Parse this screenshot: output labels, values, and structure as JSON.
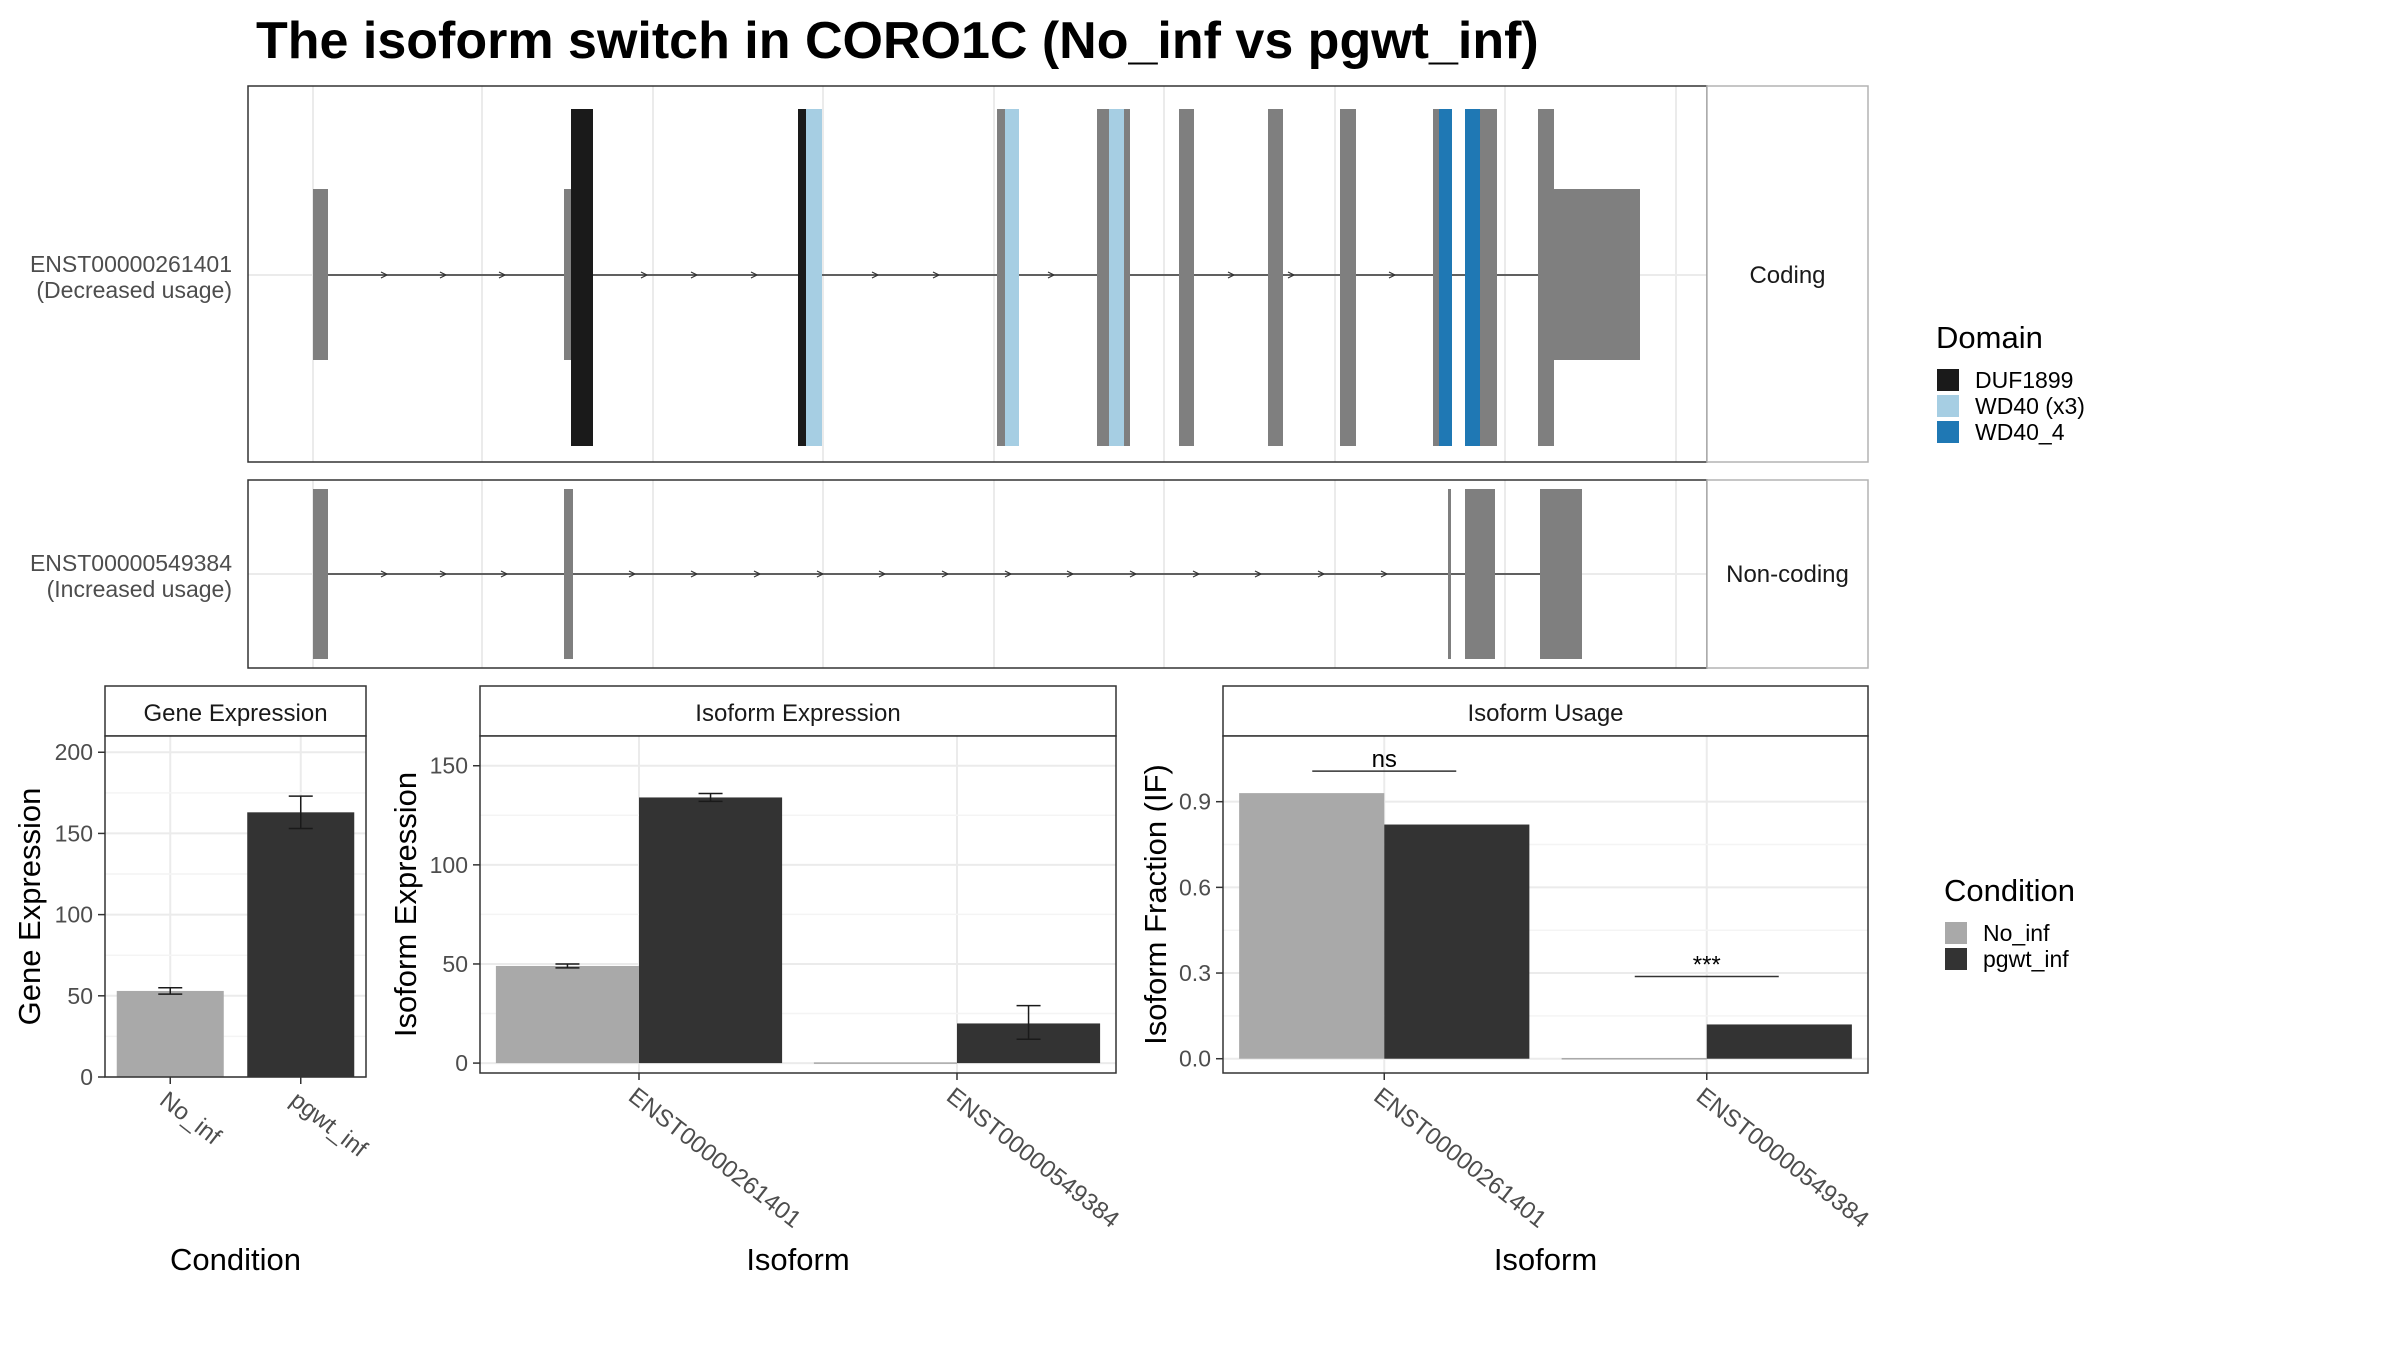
{
  "title": "The isoform switch in CORO1C (No_inf vs pgwt_inf)",
  "colors": {
    "exon_default": "#7f7f7f",
    "panel_border": "#333333",
    "strip_fill": "#ffffff",
    "grid": "#ebebeb",
    "domain": {
      "DUF1899": "#1a1a1a",
      "WD40 (x3)": "#a6cee3",
      "WD40_4": "#1f78b4"
    },
    "condition": {
      "No_inf": "#a9a9a9",
      "pgwt_inf": "#333333"
    }
  },
  "legends": {
    "domain": {
      "title": "Domain",
      "items": [
        "DUF1899",
        "WD40 (x3)",
        "WD40_4"
      ]
    },
    "condition": {
      "title": "Condition",
      "items": [
        "No_inf",
        "pgwt_inf"
      ]
    }
  },
  "tracks": [
    {
      "id": "ENST00000261401",
      "line1": "ENST00000261401",
      "line2": "(Decreased usage)",
      "type": "Coding"
    },
    {
      "id": "ENST00000549384",
      "line1": "ENST00000549384",
      "line2": "(Increased usage)",
      "type": "Non-coding"
    }
  ],
  "chart_data": [
    {
      "type": "bar",
      "title": "Gene Expression",
      "xlabel": "Condition",
      "ylabel": "Gene Expression",
      "categories": [
        "No_inf",
        "pgwt_inf"
      ],
      "values": [
        53,
        163
      ],
      "errors": [
        [
          51,
          55
        ],
        [
          153,
          173
        ]
      ],
      "ylim": [
        0,
        210
      ],
      "yticks": [
        0,
        50,
        100,
        150,
        200
      ],
      "grid": true
    },
    {
      "type": "bar",
      "title": "Isoform Expression",
      "xlabel": "Isoform",
      "ylabel": "Isoform Expression",
      "categories": [
        "ENST00000261401",
        "ENST00000549384"
      ],
      "series": [
        {
          "name": "No_inf",
          "values": [
            49,
            0
          ],
          "errors": [
            [
              48,
              50
            ],
            [
              0,
              0
            ]
          ]
        },
        {
          "name": "pgwt_inf",
          "values": [
            134,
            20
          ],
          "errors": [
            [
              132,
              136
            ],
            [
              12,
              29
            ]
          ]
        }
      ],
      "ylim": [
        -5,
        165
      ],
      "yticks": [
        0,
        50,
        100,
        150
      ],
      "grid": true
    },
    {
      "type": "bar",
      "title": "Isoform Usage",
      "xlabel": "Isoform",
      "ylabel": "Isoform Fraction (IF)",
      "categories": [
        "ENST00000261401",
        "ENST00000549384"
      ],
      "series": [
        {
          "name": "No_inf",
          "values": [
            0.93,
            0.0
          ]
        },
        {
          "name": "pgwt_inf",
          "values": [
            0.82,
            0.12
          ]
        }
      ],
      "significance": [
        "ns",
        "***"
      ],
      "ylim": [
        -0.05,
        1.13
      ],
      "yticks": [
        "0.0",
        "0.3",
        "0.6",
        "0.9"
      ],
      "grid": true
    }
  ]
}
